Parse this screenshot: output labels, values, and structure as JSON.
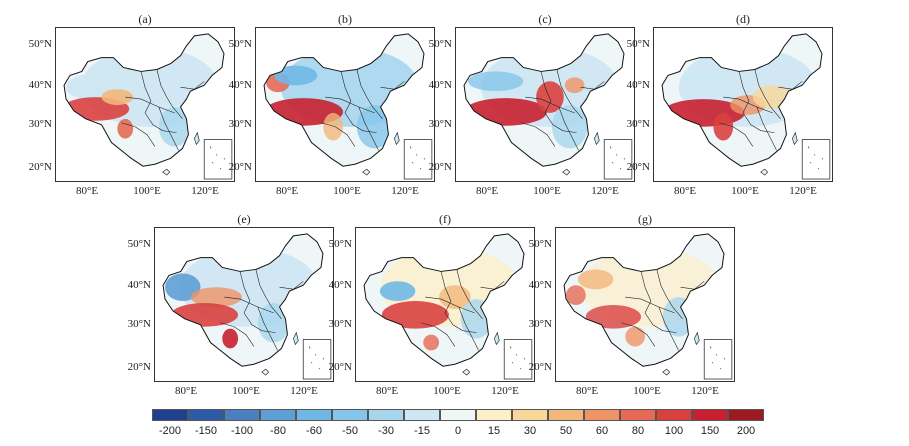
{
  "figure": {
    "panels": [
      {
        "label": "(a)",
        "pattern": "a"
      },
      {
        "label": "(b)",
        "pattern": "b"
      },
      {
        "label": "(c)",
        "pattern": "c"
      },
      {
        "label": "(d)",
        "pattern": "d"
      },
      {
        "label": "(e)",
        "pattern": "e"
      },
      {
        "label": "(f)",
        "pattern": "f"
      },
      {
        "label": "(g)",
        "pattern": "g"
      }
    ],
    "lat_ticks": [
      "50°N",
      "40°N",
      "30°N",
      "20°N"
    ],
    "lon_ticks": [
      "80°E",
      "100°E",
      "120°E"
    ],
    "colorbar": {
      "labels": [
        "-200",
        "-150",
        "-100",
        "-80",
        "-60",
        "-50",
        "-30",
        "-15",
        "0",
        "15",
        "30",
        "50",
        "60",
        "80",
        "100",
        "150",
        "200"
      ],
      "colors": [
        "#1f3f8f",
        "#2c5ca8",
        "#4a7fc0",
        "#5f9fd6",
        "#6fb8e6",
        "#85c6ea",
        "#a7d6ee",
        "#cde7f3",
        "#eef6f8",
        "#fdf0c9",
        "#f8d79a",
        "#f3b77a",
        "#ef9466",
        "#e66a55",
        "#d9413f",
        "#c82030",
        "#9b1b20"
      ]
    }
  }
}
